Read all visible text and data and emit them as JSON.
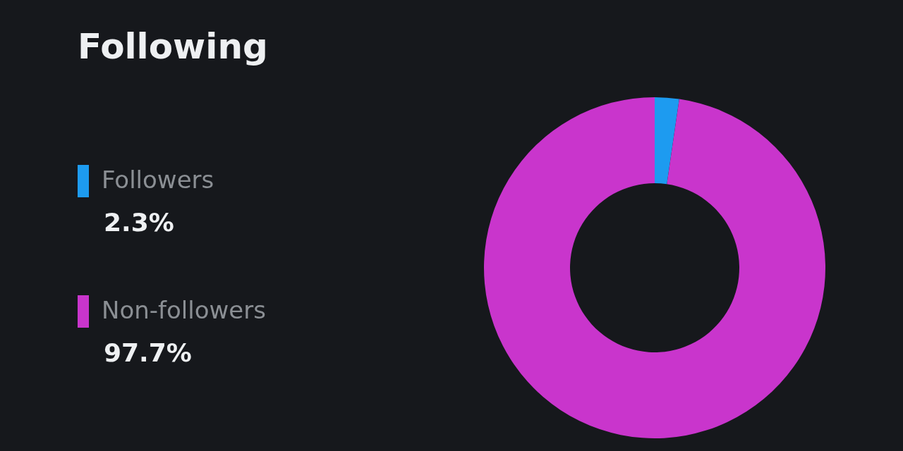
{
  "chart_data": {
    "type": "donut",
    "title": "Following",
    "categories": [
      "Followers",
      "Non-followers"
    ],
    "values": [
      2.3,
      97.7
    ],
    "colors": [
      "#1d9bf0",
      "#c935cc"
    ],
    "value_labels": [
      "2.3%",
      "97.7%"
    ],
    "legend": "left"
  }
}
